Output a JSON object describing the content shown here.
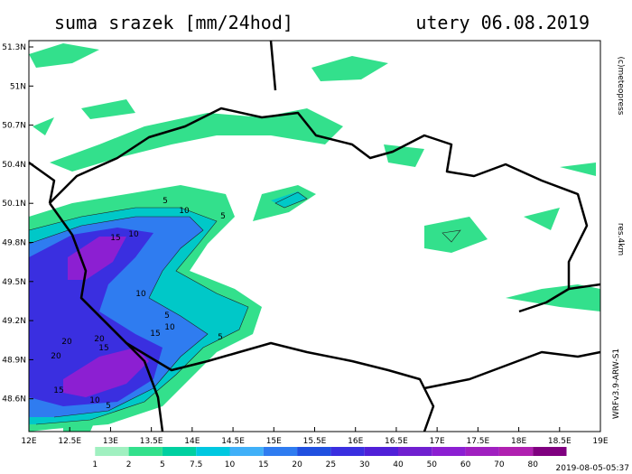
{
  "header": {
    "title": "suma srazek [mm/24hod]",
    "date": "utery 06.08.2019"
  },
  "lat_labels": [
    "51.3N",
    "51N",
    "50.7N",
    "50.4N",
    "50.1N",
    "49.8N",
    "49.5N",
    "49.2N",
    "48.9N",
    "48.6N"
  ],
  "lon_labels": [
    "12E",
    "12.5E",
    "13E",
    "13.5E",
    "14E",
    "14.5E",
    "15E",
    "15.5E",
    "16E",
    "16.5E",
    "17E",
    "17.5E",
    "18E",
    "18.5E",
    "19E"
  ],
  "legend": {
    "labels": [
      1,
      2,
      5,
      7.5,
      10,
      15,
      20,
      25,
      30,
      40,
      50,
      60,
      70,
      80
    ]
  },
  "side": {
    "copyright": "(c)meteopress",
    "resolution": "res.4km",
    "model": "WRFv3.9-ARW-S1"
  },
  "footer": {
    "timestamp": "2019-08-05-05:37"
  },
  "contour_labels": [
    "5",
    "10",
    "5",
    "10",
    "15",
    "10",
    "5",
    "10",
    "15",
    "5",
    "20",
    "20",
    "15",
    "20",
    "15",
    "10",
    "5"
  ]
}
